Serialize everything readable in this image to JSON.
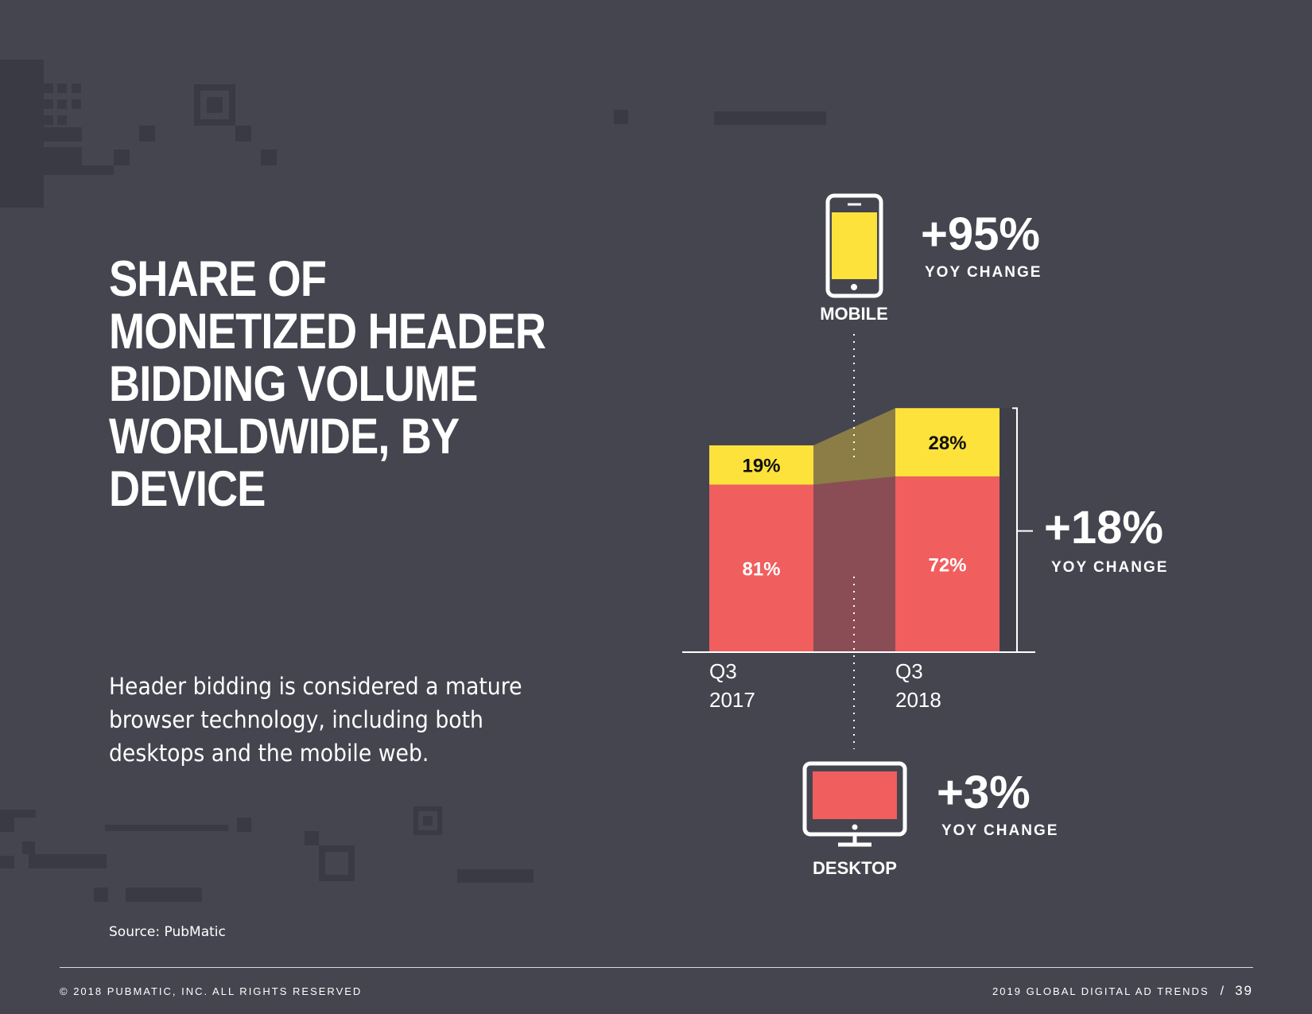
{
  "title": "SHARE OF MONETIZED HEADER BIDDING VOLUME WORLDWIDE, BY DEVICE",
  "description": "Header bidding is considered a mature browser technology, including both desktops and the mobile web.",
  "source": "Source: PubMatic",
  "footer": {
    "copyright": "© 2018 PUBMATIC, INC. ALL RIGHTS RESERVED",
    "publication": "2019 GLOBAL DIGITAL AD TRENDS",
    "separator": "/",
    "page_number": "39"
  },
  "colors": {
    "background": "#454550",
    "mobile": "#fde23b",
    "desktop": "#f05e5e",
    "mobile_band": "#8c7d46",
    "desktop_band": "#8a4d56",
    "pattern": "#3a3a44"
  },
  "icons": {
    "mobile": "smartphone-icon",
    "desktop": "monitor-icon"
  },
  "chart_data": {
    "type": "bar",
    "stacked": true,
    "categories": [
      [
        "Q3",
        "2017"
      ],
      [
        "Q3",
        "2018"
      ]
    ],
    "series": [
      {
        "name": "DESKTOP",
        "values": [
          81,
          72
        ],
        "labels": [
          "81%",
          "72%"
        ],
        "color": "#f05e5e"
      },
      {
        "name": "MOBILE",
        "values": [
          19,
          28
        ],
        "labels": [
          "19%",
          "28%"
        ],
        "color": "#fde23b"
      }
    ],
    "relative_totals": [
      100,
      118
    ],
    "yoy": {
      "mobile": {
        "value": "+95%",
        "label": "YOY CHANGE"
      },
      "desktop": {
        "value": "+3%",
        "label": "YOY CHANGE"
      },
      "total": {
        "value": "+18%",
        "label": "YOY CHANGE"
      }
    }
  }
}
